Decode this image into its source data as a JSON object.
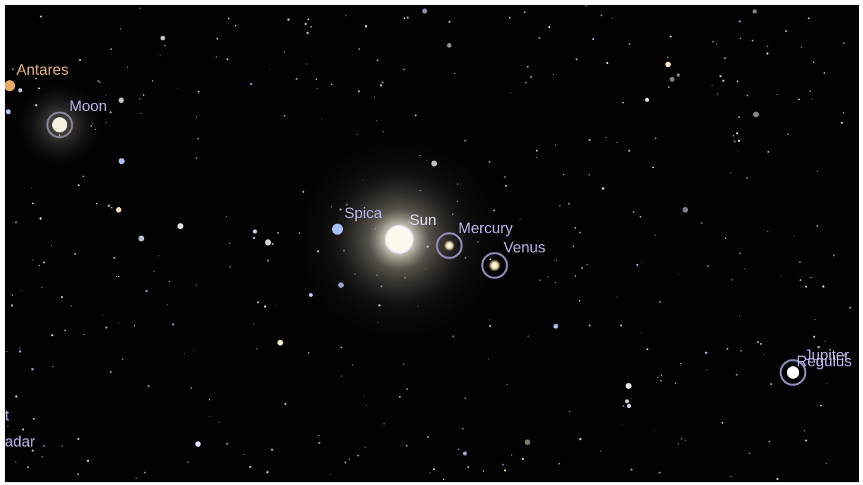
{
  "labels": {
    "antares": "Antares",
    "moon": "Moon",
    "spica": "Spica",
    "sun": "Sun",
    "mercury": "Mercury",
    "venus": "Venus",
    "jupiter": "Jupiter",
    "regulus": "Regulus",
    "edge_top": "t",
    "edge_bottom": "adar"
  }
}
